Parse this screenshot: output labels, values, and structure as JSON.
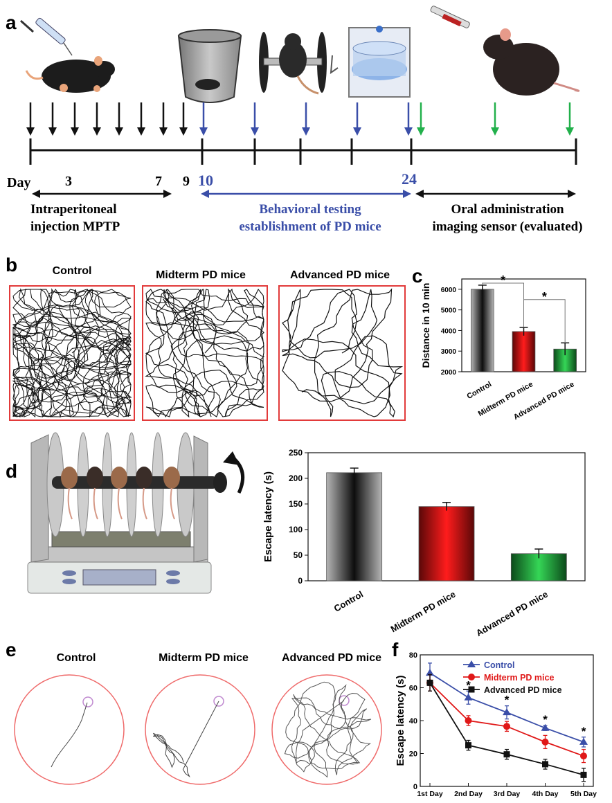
{
  "panel_labels": {
    "a": "a",
    "b": "b",
    "c": "c",
    "d": "d",
    "e": "e",
    "f": "f"
  },
  "timeline": {
    "day_label": "Day",
    "days": [
      "3",
      "7",
      "9",
      "10",
      "24"
    ],
    "phase1": "Intraperitoneal\ninjection MPTP",
    "phase2": "Behavioral testing\nestablishment of PD mice",
    "phase3": "Oral administration\nimaging sensor (evaluated)",
    "colors": {
      "black": "#111111",
      "blue": "#3a4ea8",
      "green": "#22b04b"
    }
  },
  "open_field": {
    "titles": [
      "Control",
      "Midterm PD mice",
      "Advanced PD mice"
    ],
    "border_color": "#e23a3a"
  },
  "water_maze": {
    "titles": [
      "Control",
      "Midterm PD mice",
      "Advanced PD mice"
    ],
    "circle_color": "#ef6b6b",
    "platform_color": "#c08ad0"
  },
  "chart_data": [
    {
      "id": "c",
      "type": "bar",
      "categories": [
        "Control",
        "Midterm PD mice",
        "Advanced PD mice"
      ],
      "values": [
        6000,
        3950,
        3100
      ],
      "errors": [
        200,
        200,
        300
      ],
      "ylabel": "Distance in 10 min",
      "ylim": [
        2000,
        6500
      ],
      "yticks": [
        "2000",
        "3000",
        "4000",
        "5000",
        "6000"
      ],
      "annotations": [
        "*",
        "*"
      ],
      "colors": [
        "#555555",
        "#e01818",
        "#25a33c"
      ]
    },
    {
      "id": "d",
      "type": "bar",
      "categories": [
        "Control",
        "Midterm PD mice",
        "Advanced PD mice"
      ],
      "values": [
        211,
        145,
        53
      ],
      "errors": [
        9,
        8,
        9
      ],
      "ylabel": "Escape latency (s)",
      "ylim": [
        0,
        250
      ],
      "yticks": [
        "0",
        "50",
        "100",
        "150",
        "200",
        "250"
      ],
      "colors": [
        "#555555",
        "#e01818",
        "#25a33c"
      ]
    },
    {
      "id": "f",
      "type": "line",
      "categories": [
        "1st Day",
        "2nd Day",
        "3rd Day",
        "4th Day",
        "5th Day"
      ],
      "ylabel": "Escape latency (s)",
      "ylim": [
        0,
        80
      ],
      "yticks": [
        "0",
        "20",
        "40",
        "60",
        "80"
      ],
      "series": [
        {
          "name": "Control",
          "values": [
            69,
            54,
            45,
            35.5,
            27
          ],
          "errors": [
            6,
            4,
            4,
            1.5,
            3
          ],
          "color": "#3a4ea8",
          "marker": "triangle"
        },
        {
          "name": "Midterm PD mice",
          "values": [
            63,
            40,
            36.5,
            27,
            18.5
          ],
          "errors": [
            5,
            3,
            3,
            4,
            4
          ],
          "color": "#e01818",
          "marker": "circle"
        },
        {
          "name": "Advanced PD mice",
          "values": [
            63,
            25,
            19.5,
            13.5,
            7
          ],
          "errors": [
            5,
            3,
            3,
            3,
            4
          ],
          "color": "#111111",
          "marker": "square"
        }
      ],
      "annotations": [
        "*",
        "*",
        "*",
        "*"
      ]
    }
  ]
}
